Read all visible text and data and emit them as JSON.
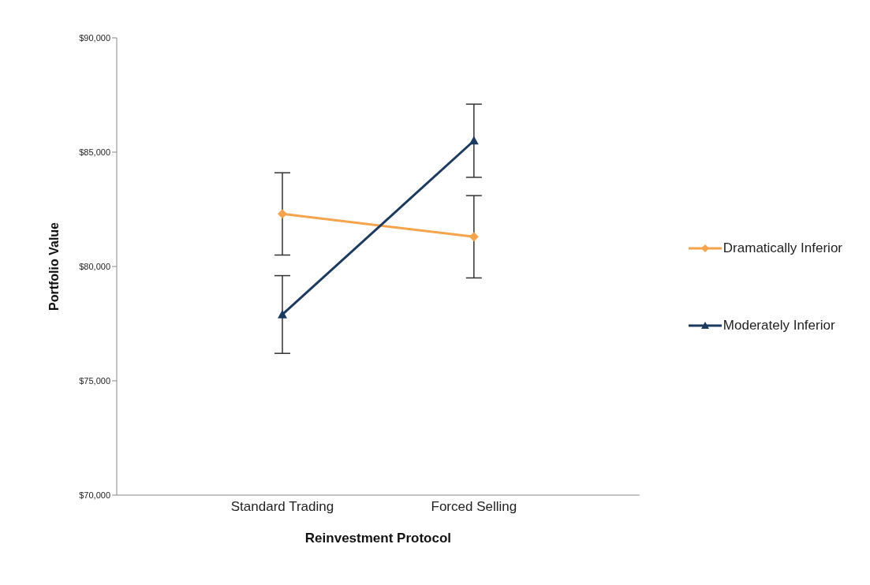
{
  "chart_data": {
    "type": "line",
    "xlabel": "Reinvestment Protocol",
    "ylabel": "Portfolio Value",
    "categories": [
      "Standard Trading",
      "Forced Selling"
    ],
    "series": [
      {
        "name": "Dramatically Inferior",
        "color": "#f5a34c",
        "marker": "diamond",
        "values": [
          82300,
          81300
        ],
        "errors": [
          1800,
          1800
        ]
      },
      {
        "name": "Moderately Inferior",
        "color": "#1c3a5e",
        "marker": "triangle",
        "values": [
          77900,
          85500
        ],
        "errors": [
          1700,
          1600
        ]
      }
    ],
    "ylim": [
      70000,
      90000
    ],
    "yticks": [
      {
        "value": 70000,
        "label": "$70,000"
      },
      {
        "value": 75000,
        "label": "$75,000"
      },
      {
        "value": 80000,
        "label": "$80,000"
      },
      {
        "value": 85000,
        "label": "$85,000"
      },
      {
        "value": 90000,
        "label": "$90,000"
      }
    ],
    "grid": false,
    "legend": "right"
  }
}
